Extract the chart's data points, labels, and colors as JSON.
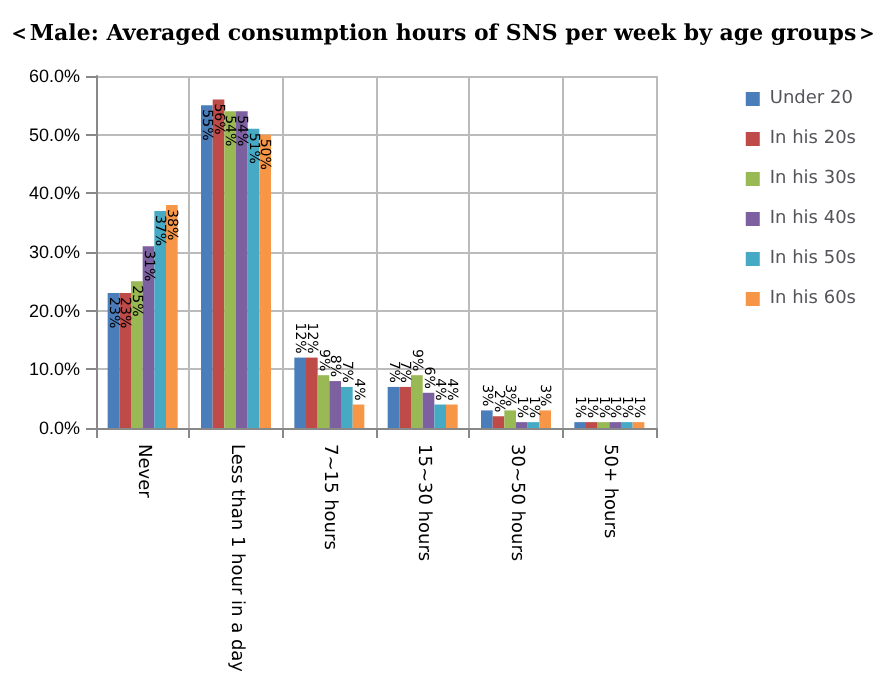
{
  "chart_data": {
    "type": "bar",
    "title": "＜Male: Averaged consumption hours of SNS per week by age groups＞",
    "categories": [
      "Never",
      "Less than 1 hour in a day",
      "7~15 hours",
      "15~30 hours",
      "30~50 hours",
      "50+ hours"
    ],
    "series": [
      {
        "name": "Under 20",
        "color": "#4a7ebb",
        "values": [
          23,
          55,
          12,
          7,
          3,
          1
        ],
        "value_labels": [
          "23%",
          "55%",
          "12%",
          "7%",
          "3%",
          "1%"
        ]
      },
      {
        "name": "In his 20s",
        "color": "#be4b48",
        "values": [
          23,
          56,
          12,
          7,
          2,
          1
        ],
        "value_labels": [
          "23%",
          "56%",
          "12%",
          "7%",
          "2%",
          "1%"
        ]
      },
      {
        "name": "In his 30s",
        "color": "#98b954",
        "values": [
          25,
          54,
          9,
          9,
          3,
          1
        ],
        "value_labels": [
          "25%",
          "54%",
          "9%",
          "9%",
          "3%",
          "1%"
        ]
      },
      {
        "name": "In his 40s",
        "color": "#7d60a0",
        "values": [
          31,
          54,
          8,
          6,
          1,
          1
        ],
        "value_labels": [
          "31%",
          "54%",
          "8%",
          "6%",
          "1%",
          "1%"
        ]
      },
      {
        "name": "In his 50s",
        "color": "#46aac5",
        "values": [
          37,
          51,
          7,
          4,
          1,
          1
        ],
        "value_labels": [
          "37%",
          "51%",
          "7%",
          "4%",
          "1%",
          "1%"
        ]
      },
      {
        "name": "In his 60s",
        "color": "#f79646",
        "values": [
          38,
          50,
          4,
          4,
          3,
          1
        ],
        "value_labels": [
          "38%",
          "50%",
          "4%",
          "4%",
          "3%",
          "1%"
        ]
      }
    ],
    "ylim": [
      0,
      60
    ],
    "yticks": [
      {
        "value": 0,
        "label": "0.0%"
      },
      {
        "value": 10,
        "label": "10.0%"
      },
      {
        "value": 20,
        "label": "20.0%"
      },
      {
        "value": 30,
        "label": "30.0%"
      },
      {
        "value": 40,
        "label": "40.0%"
      },
      {
        "value": 50,
        "label": "50.0%"
      },
      {
        "value": 60,
        "label": "60.0%"
      }
    ],
    "grid": true,
    "legend": "right"
  }
}
